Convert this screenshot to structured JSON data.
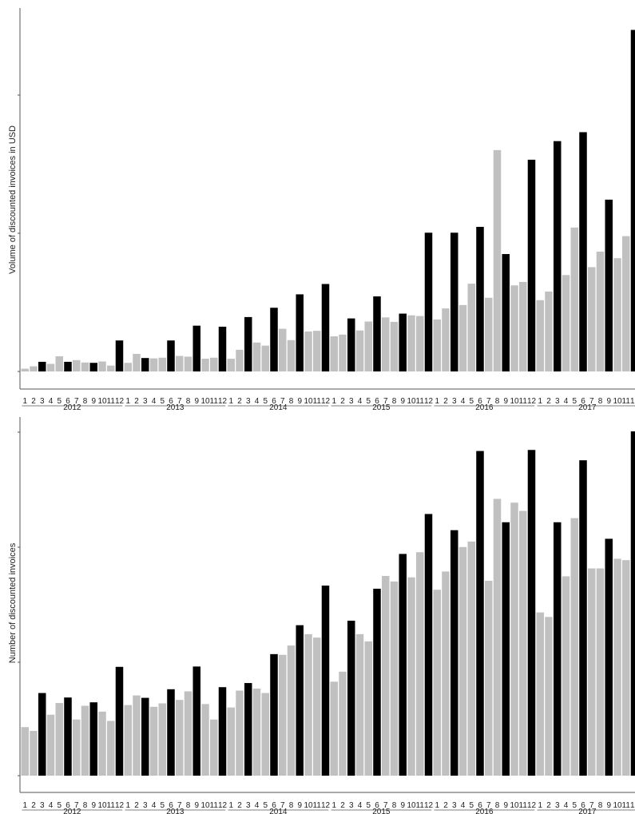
{
  "colors": {
    "highlight": "#000000",
    "regular": "#c0c0c0",
    "axis": "#555555"
  },
  "chart_data": [
    {
      "type": "bar",
      "title": "",
      "xlabel": "",
      "ylabel": "Volume of discounted invoices in USD",
      "grid": false,
      "y_tick_labels_shown": false,
      "year_labels": [
        "2012",
        "2013",
        "2014",
        "2015",
        "2016",
        "2017"
      ],
      "month_labels": [
        "1",
        "2",
        "3",
        "4",
        "5",
        "6",
        "7",
        "8",
        "9",
        "10",
        "11",
        "12"
      ],
      "ylim": [
        0,
        100
      ],
      "values": [
        0.8,
        1.5,
        2.8,
        2.2,
        4.4,
        2.8,
        3.3,
        2.6,
        2.5,
        2.9,
        1.7,
        9.0,
        2.5,
        5.1,
        3.9,
        3.8,
        4.0,
        9.0,
        4.5,
        4.3,
        13.3,
        3.7,
        4.0,
        13.0,
        3.7,
        6.3,
        15.8,
        8.4,
        7.5,
        18.5,
        12.4,
        9.1,
        22.4,
        11.6,
        11.8,
        25.4,
        10.2,
        10.7,
        15.4,
        11.9,
        14.5,
        21.8,
        15.7,
        14.4,
        16.8,
        16.3,
        16.1,
        40.3,
        15.1,
        18.3,
        40.3,
        19.3,
        25.5,
        42.0,
        21.4,
        64.3,
        34.1,
        25.0,
        26.0,
        61.5,
        20.7,
        23.2,
        66.9,
        28.0,
        41.8,
        69.5,
        30.3,
        34.8,
        49.9,
        32.9,
        39.3,
        99.2
      ],
      "highlight": [
        0,
        0,
        1,
        0,
        0,
        1,
        0,
        0,
        1,
        0,
        0,
        1,
        0,
        0,
        1,
        0,
        0,
        1,
        0,
        0,
        1,
        0,
        0,
        1,
        0,
        0,
        1,
        0,
        0,
        1,
        0,
        0,
        1,
        0,
        0,
        1,
        0,
        0,
        1,
        0,
        0,
        1,
        0,
        0,
        1,
        0,
        0,
        1,
        0,
        0,
        1,
        0,
        0,
        1,
        0,
        0,
        1,
        0,
        0,
        1,
        0,
        0,
        1,
        0,
        0,
        1,
        0,
        0,
        1,
        0,
        0,
        1
      ]
    },
    {
      "type": "bar",
      "title": "",
      "xlabel": "",
      "ylabel": "Number of discounted invoices",
      "grid": false,
      "y_tick_labels_shown": false,
      "year_labels": [
        "2012",
        "2013",
        "2014",
        "2015",
        "2016",
        "2017"
      ],
      "month_labels": [
        "1",
        "2",
        "3",
        "4",
        "5",
        "6",
        "7",
        "8",
        "9",
        "10",
        "11",
        "12"
      ],
      "ylim": [
        0,
        100
      ],
      "values": [
        14.1,
        13.0,
        24.0,
        17.7,
        21.1,
        22.7,
        16.3,
        20.3,
        21.3,
        18.6,
        15.9,
        31.6,
        20.5,
        23.3,
        22.6,
        20.0,
        21.0,
        25.1,
        22.0,
        24.5,
        31.7,
        20.8,
        16.3,
        25.7,
        19.8,
        24.7,
        26.9,
        25.3,
        24.0,
        35.3,
        35.1,
        37.8,
        43.7,
        41.1,
        40.1,
        55.2,
        27.3,
        30.2,
        45.0,
        41.1,
        39.0,
        54.3,
        58.0,
        56.4,
        64.4,
        57.6,
        64.9,
        76.0,
        54.0,
        59.3,
        71.3,
        66.4,
        68.0,
        94.3,
        56.6,
        80.4,
        73.6,
        79.3,
        76.9,
        94.6,
        47.4,
        46.1,
        73.6,
        57.9,
        74.8,
        91.6,
        60.2,
        60.2,
        68.8,
        63.0,
        62.6,
        100.0
      ],
      "highlight": [
        0,
        0,
        1,
        0,
        0,
        1,
        0,
        0,
        1,
        0,
        0,
        1,
        0,
        0,
        1,
        0,
        0,
        1,
        0,
        0,
        1,
        0,
        0,
        1,
        0,
        0,
        1,
        0,
        0,
        1,
        0,
        0,
        1,
        0,
        0,
        1,
        0,
        0,
        1,
        0,
        0,
        1,
        0,
        0,
        1,
        0,
        0,
        1,
        0,
        0,
        1,
        0,
        0,
        1,
        0,
        0,
        1,
        0,
        0,
        1,
        0,
        0,
        1,
        0,
        0,
        1,
        0,
        0,
        1,
        0,
        0,
        1
      ]
    }
  ]
}
